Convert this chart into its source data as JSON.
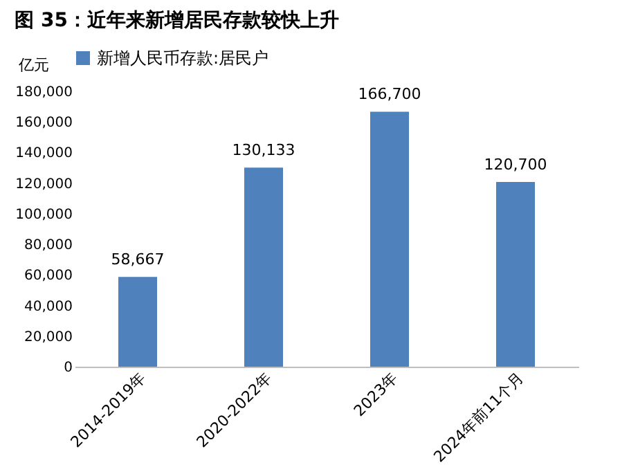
{
  "chart_data": {
    "type": "bar",
    "title": "图 35：近年来新增居民存款较快上升",
    "ylabel": "亿元",
    "categories": [
      "2014-2019年",
      "2020-2022年",
      "2023年",
      "2024年前11个月"
    ],
    "series": [
      {
        "name": "新增人民币存款:居民户",
        "color": "#4f81bd",
        "values": [
          58667,
          130133,
          166700,
          120700
        ],
        "value_labels": [
          "58,667",
          "130,133",
          "166,700",
          "120,700"
        ]
      }
    ],
    "ylim": [
      0,
      180000
    ],
    "yticks": [
      0,
      {
        "value": 20000,
        "label": "20,000"
      },
      {
        "value": 40000,
        "label": "40,000"
      },
      {
        "value": 60000,
        "label": "60,000"
      },
      {
        "value": 80000,
        "label": "80,000"
      },
      {
        "value": 100000,
        "label": "100,000"
      },
      {
        "value": 120000,
        "label": "120,000"
      },
      {
        "value": 140000,
        "label": "140,000"
      },
      {
        "value": 160000,
        "label": "160,000"
      },
      {
        "value": 180000,
        "label": "180,000"
      }
    ],
    "grid": false,
    "legend": "top"
  }
}
